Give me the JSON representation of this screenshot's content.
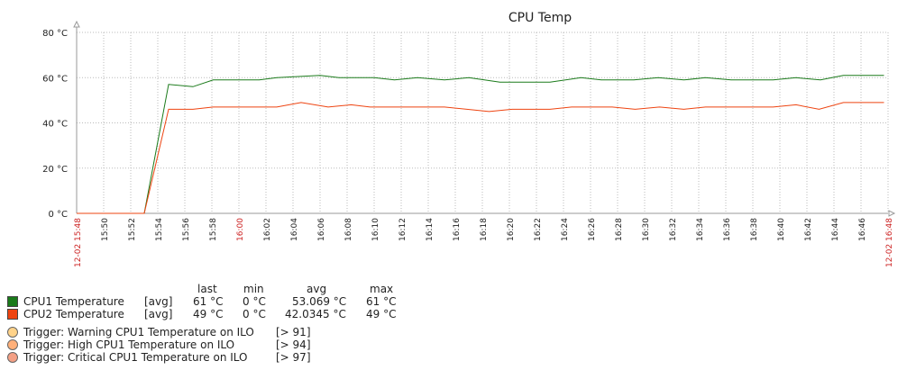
{
  "chart_data": {
    "type": "line",
    "title": "CPU Temp",
    "xlabel": "",
    "ylabel": "",
    "ylim": [
      0,
      80
    ],
    "yticks": [
      {
        "v": 0,
        "label": "0 °C"
      },
      {
        "v": 20,
        "label": "20 °C"
      },
      {
        "v": 40,
        "label": "40 °C"
      },
      {
        "v": 60,
        "label": "60 °C"
      },
      {
        "v": 80,
        "label": "80 °C"
      }
    ],
    "xrange": [
      0,
      60
    ],
    "xticks": [
      {
        "t": 0,
        "label": "12-02 15:48",
        "red": true
      },
      {
        "t": 2,
        "label": "15:50"
      },
      {
        "t": 4,
        "label": "15:52"
      },
      {
        "t": 6,
        "label": "15:54"
      },
      {
        "t": 8,
        "label": "15:56"
      },
      {
        "t": 10,
        "label": "15:58"
      },
      {
        "t": 12,
        "label": "16:00",
        "red": true
      },
      {
        "t": 14,
        "label": "16:02"
      },
      {
        "t": 16,
        "label": "16:04"
      },
      {
        "t": 18,
        "label": "16:06"
      },
      {
        "t": 20,
        "label": "16:08"
      },
      {
        "t": 22,
        "label": "16:10"
      },
      {
        "t": 24,
        "label": "16:12"
      },
      {
        "t": 26,
        "label": "16:14"
      },
      {
        "t": 28,
        "label": "16:16"
      },
      {
        "t": 30,
        "label": "16:18"
      },
      {
        "t": 32,
        "label": "16:20"
      },
      {
        "t": 34,
        "label": "16:22"
      },
      {
        "t": 36,
        "label": "16:24"
      },
      {
        "t": 38,
        "label": "16:26"
      },
      {
        "t": 40,
        "label": "16:28"
      },
      {
        "t": 42,
        "label": "16:30"
      },
      {
        "t": 44,
        "label": "16:32"
      },
      {
        "t": 46,
        "label": "16:34"
      },
      {
        "t": 48,
        "label": "16:36"
      },
      {
        "t": 50,
        "label": "16:38"
      },
      {
        "t": 52,
        "label": "16:40"
      },
      {
        "t": 54,
        "label": "16:42"
      },
      {
        "t": 56,
        "label": "16:44"
      },
      {
        "t": 58,
        "label": "16:46"
      },
      {
        "t": 60,
        "label": "12-02 16:48",
        "red": true
      }
    ],
    "grid": true,
    "series": [
      {
        "name": "CPU1 Temperature",
        "color": "#1a7a1a",
        "points": [
          [
            0,
            0
          ],
          [
            5,
            0
          ],
          [
            6.8,
            57
          ],
          [
            8.6,
            56
          ],
          [
            10.1,
            59
          ],
          [
            12,
            59
          ],
          [
            13.5,
            59
          ],
          [
            14.8,
            60
          ],
          [
            18,
            61
          ],
          [
            19.4,
            60
          ],
          [
            22,
            60
          ],
          [
            23.5,
            59
          ],
          [
            25.2,
            60
          ],
          [
            27.2,
            59
          ],
          [
            29,
            60
          ],
          [
            31.3,
            58
          ],
          [
            35,
            58
          ],
          [
            37.3,
            60
          ],
          [
            38.8,
            59
          ],
          [
            41.2,
            59
          ],
          [
            43,
            60
          ],
          [
            44.9,
            59
          ],
          [
            46.5,
            60
          ],
          [
            48.4,
            59
          ],
          [
            51.5,
            59
          ],
          [
            53.2,
            60
          ],
          [
            55,
            59
          ],
          [
            56.7,
            61
          ],
          [
            59.7,
            61
          ]
        ]
      },
      {
        "name": "CPU2 Temperature",
        "color": "#ee4411",
        "points": [
          [
            0,
            0
          ],
          [
            5,
            0
          ],
          [
            6.8,
            46
          ],
          [
            8.6,
            46
          ],
          [
            10.1,
            47
          ],
          [
            14.8,
            47
          ],
          [
            16.6,
            49
          ],
          [
            18.6,
            47
          ],
          [
            20.3,
            48
          ],
          [
            21.7,
            47
          ],
          [
            27.2,
            47
          ],
          [
            30.5,
            45
          ],
          [
            32.2,
            46
          ],
          [
            35,
            46
          ],
          [
            36.6,
            47
          ],
          [
            39.6,
            47
          ],
          [
            41.3,
            46
          ],
          [
            43.1,
            47
          ],
          [
            44.9,
            46
          ],
          [
            46.5,
            47
          ],
          [
            51.5,
            47
          ],
          [
            53.2,
            48
          ],
          [
            54.9,
            46
          ],
          [
            56.7,
            49
          ],
          [
            59.7,
            49
          ]
        ]
      }
    ]
  },
  "legend": {
    "headers": {
      "last": "last",
      "min": "min",
      "avg": "avg",
      "max": "max"
    },
    "rows": [
      {
        "name": "CPU1 Temperature",
        "func": "[avg]",
        "last": "61 °C",
        "min": "0 °C",
        "avg": "53.069 °C",
        "max": "61 °C",
        "color": "#1a7a1a"
      },
      {
        "name": "CPU2 Temperature",
        "func": "[avg]",
        "last": "49 °C",
        "min": "0 °C",
        "avg": "42.0345 °C",
        "max": "49 °C",
        "color": "#ee4411"
      }
    ],
    "triggers": [
      {
        "label": "Trigger: Warning CPU1 Temperature on ILO",
        "value": "[> 91]",
        "color": "#ffd38a"
      },
      {
        "label": "Trigger: High CPU1 Temperature on ILO",
        "value": "[> 94]",
        "color": "#ffb07a"
      },
      {
        "label": "Trigger: Critical CPU1 Temperature on ILO",
        "value": "[> 97]",
        "color": "#f4a085"
      }
    ]
  }
}
